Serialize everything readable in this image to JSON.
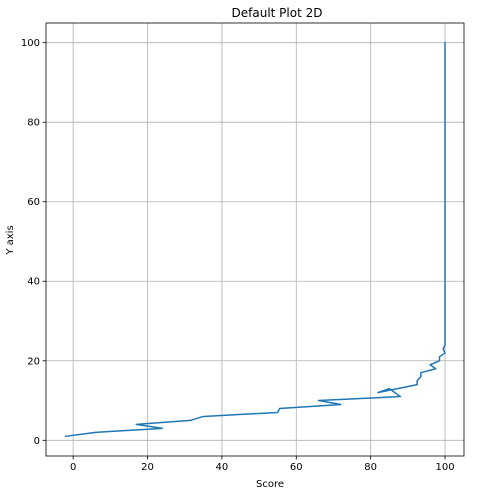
{
  "chart_data": {
    "type": "line",
    "title": "Default Plot 2D",
    "xlabel": "Score",
    "ylabel": "Y axis",
    "xlim": [
      -7.3,
      105.1
    ],
    "ylim": [
      -3.95,
      104.95
    ],
    "grid": true,
    "xticks": [
      0,
      20,
      40,
      60,
      80,
      100
    ],
    "yticks": [
      0,
      20,
      40,
      60,
      80,
      100
    ],
    "xtick_labels": [
      "0",
      "20",
      "40",
      "60",
      "80",
      "100"
    ],
    "ytick_labels": [
      "0",
      "20",
      "40",
      "60",
      "80",
      "100"
    ],
    "series": [
      {
        "color": "#1f77b4",
        "x": [
          -2,
          6,
          24,
          17,
          31.5,
          35,
          55,
          55.5,
          72,
          66,
          88,
          85,
          82,
          92.5,
          92.5,
          93.5,
          93.5,
          97.5,
          96,
          98.5,
          98.5,
          100,
          99.5,
          100,
          100,
          100
        ],
        "y": [
          1,
          2,
          3,
          4,
          5,
          6,
          7,
          8,
          9,
          10,
          11,
          13,
          12,
          14,
          15,
          16,
          17,
          18,
          19,
          20,
          21,
          22,
          23,
          24,
          28,
          100
        ]
      }
    ]
  }
}
